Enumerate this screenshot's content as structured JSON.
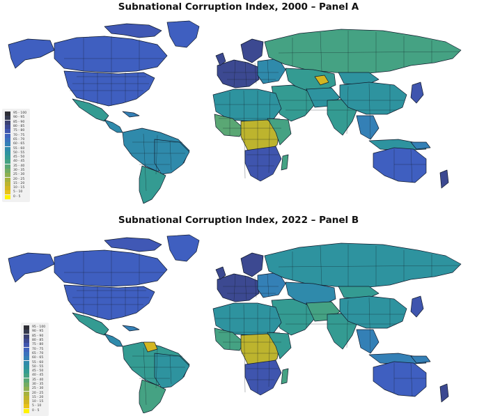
{
  "panel_a": {
    "title": "Subnational Corruption Index, 2000 – Panel A"
  },
  "panel_b": {
    "title": "Subnational Corruption Index, 2022 – Panel B"
  },
  "legend": {
    "items": [
      {
        "label": "95 - 100",
        "color": "#2e2e35"
      },
      {
        "label": "90 - 95",
        "color": "#353a4f"
      },
      {
        "label": "85 - 90",
        "color": "#3a4171"
      },
      {
        "label": "80 - 85",
        "color": "#3c4991"
      },
      {
        "label": "75 - 80",
        "color": "#3f55ae"
      },
      {
        "label": "70 - 75",
        "color": "#3f64bd"
      },
      {
        "label": "65 - 70",
        "color": "#3a72bd"
      },
      {
        "label": "60 - 65",
        "color": "#3480b6"
      },
      {
        "label": "55 - 60",
        "color": "#2f8aab"
      },
      {
        "label": "50 - 55",
        "color": "#2e939f"
      },
      {
        "label": "45 - 50",
        "color": "#349b92"
      },
      {
        "label": "40 - 45",
        "color": "#45a283"
      },
      {
        "label": "35 - 40",
        "color": "#5aa774"
      },
      {
        "label": "30 - 35",
        "color": "#73ac62"
      },
      {
        "label": "25 - 30",
        "color": "#8daf51"
      },
      {
        "label": "20 - 25",
        "color": "#a6b23e"
      },
      {
        "label": "15 - 20",
        "color": "#bdb42e"
      },
      {
        "label": "10 - 15",
        "color": "#d3b622"
      },
      {
        "label": "5 - 10",
        "color": "#e8c21a"
      },
      {
        "label": "0 - 5",
        "color": "#fff200"
      }
    ]
  },
  "colors": {
    "north_america": "#3f5fc0",
    "canada_north": "#4058b5",
    "central_america": "#2f8aab",
    "south_america_a": "#2f8aab",
    "south_america_b": "#349b92",
    "europe_west": "#3c4991",
    "europe_east": "#2f8aab",
    "russia": "#45a283",
    "middle_east": "#349b92",
    "africa_north": "#2e939f",
    "africa_central": "#bdb42e",
    "africa_south": "#3f55ae",
    "south_asia": "#349b92",
    "china": "#2e939f",
    "southeast_asia": "#3480b6",
    "australia": "#3f5fc0",
    "nz": "#3c4991",
    "ocean": "#ffffff"
  }
}
